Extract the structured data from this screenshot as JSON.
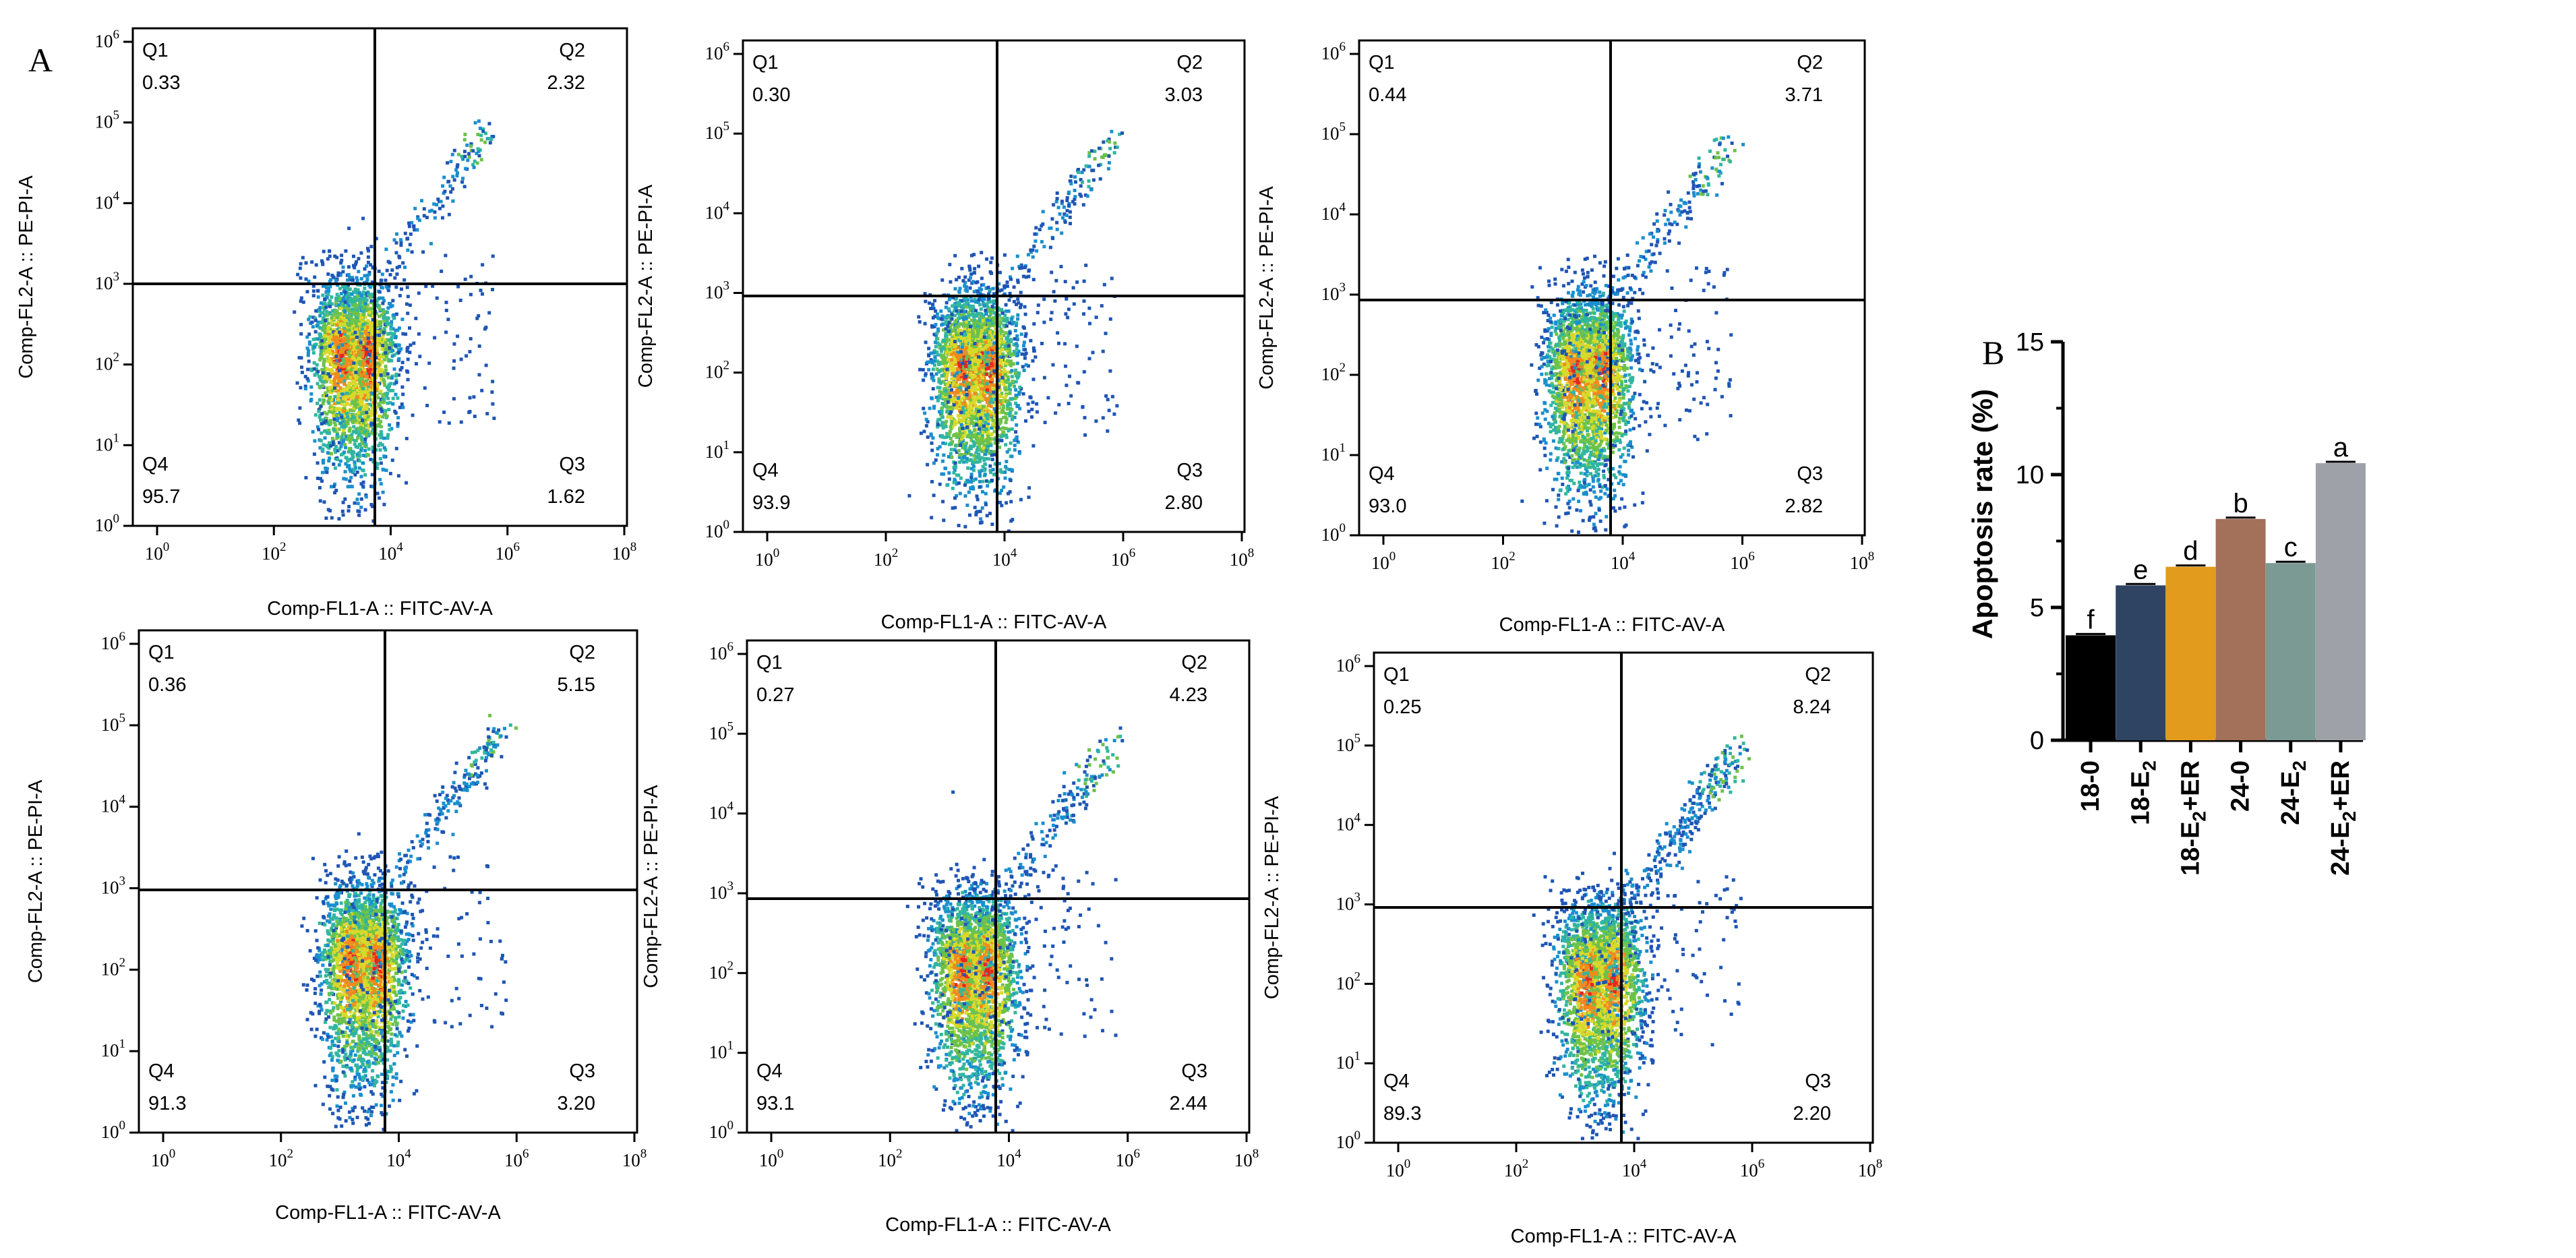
{
  "panel_labels": {
    "a": "A",
    "b": "B"
  },
  "chart_data": [
    {
      "type": "scatter",
      "subtype": "flow-cytometry-density",
      "xlabel": "Comp-FL1-A :: FITC-AV-A",
      "ylabel": "Comp-FL2-A :: PE-PI-A",
      "xticks": [
        "0",
        "2",
        "4",
        "6",
        "8"
      ],
      "yticks": [
        "0",
        "1",
        "2",
        "3",
        "4",
        "5",
        "6"
      ],
      "tick_base": "10",
      "quadrants": [
        {
          "name": "Q1",
          "value": "0.33"
        },
        {
          "name": "Q2",
          "value": "2.32"
        },
        {
          "name": "Q3",
          "value": "1.62"
        },
        {
          "name": "Q4",
          "value": "95.7"
        }
      ]
    },
    {
      "type": "scatter",
      "subtype": "flow-cytometry-density",
      "xlabel": "Comp-FL1-A :: FITC-AV-A",
      "ylabel": "Comp-FL2-A :: PE-PI-A",
      "xticks": [
        "0",
        "2",
        "4",
        "6",
        "8"
      ],
      "yticks": [
        "0",
        "1",
        "2",
        "3",
        "4",
        "5",
        "6"
      ],
      "tick_base": "10",
      "quadrants": [
        {
          "name": "Q1",
          "value": "0.30"
        },
        {
          "name": "Q2",
          "value": "3.03"
        },
        {
          "name": "Q3",
          "value": "2.80"
        },
        {
          "name": "Q4",
          "value": "93.9"
        }
      ]
    },
    {
      "type": "scatter",
      "subtype": "flow-cytometry-density",
      "xlabel": "Comp-FL1-A :: FITC-AV-A",
      "ylabel": "Comp-FL2-A :: PE-PI-A",
      "xticks": [
        "0",
        "2",
        "4",
        "6",
        "8"
      ],
      "yticks": [
        "0",
        "1",
        "2",
        "3",
        "4",
        "5",
        "6"
      ],
      "tick_base": "10",
      "quadrants": [
        {
          "name": "Q1",
          "value": "0.44"
        },
        {
          "name": "Q2",
          "value": "3.71"
        },
        {
          "name": "Q3",
          "value": "2.82"
        },
        {
          "name": "Q4",
          "value": "93.0"
        }
      ]
    },
    {
      "type": "scatter",
      "subtype": "flow-cytometry-density",
      "xlabel": "Comp-FL1-A :: FITC-AV-A",
      "ylabel": "Comp-FL2-A :: PE-PI-A",
      "xticks": [
        "0",
        "2",
        "4",
        "6",
        "8"
      ],
      "yticks": [
        "0",
        "1",
        "2",
        "3",
        "4",
        "5",
        "6"
      ],
      "tick_base": "10",
      "quadrants": [
        {
          "name": "Q1",
          "value": "0.36"
        },
        {
          "name": "Q2",
          "value": "5.15"
        },
        {
          "name": "Q3",
          "value": "3.20"
        },
        {
          "name": "Q4",
          "value": "91.3"
        }
      ]
    },
    {
      "type": "scatter",
      "subtype": "flow-cytometry-density",
      "xlabel": "Comp-FL1-A :: FITC-AV-A",
      "ylabel": "Comp-FL2-A :: PE-PI-A",
      "xticks": [
        "0",
        "2",
        "4",
        "6",
        "8"
      ],
      "yticks": [
        "0",
        "1",
        "2",
        "3",
        "4",
        "5",
        "6"
      ],
      "tick_base": "10",
      "quadrants": [
        {
          "name": "Q1",
          "value": "0.27"
        },
        {
          "name": "Q2",
          "value": "4.23"
        },
        {
          "name": "Q3",
          "value": "2.44"
        },
        {
          "name": "Q4",
          "value": "93.1"
        }
      ]
    },
    {
      "type": "scatter",
      "subtype": "flow-cytometry-density",
      "xlabel": "Comp-FL1-A :: FITC-AV-A",
      "ylabel": "Comp-FL2-A :: PE-PI-A",
      "xticks": [
        "0",
        "2",
        "4",
        "6",
        "8"
      ],
      "yticks": [
        "0",
        "1",
        "2",
        "3",
        "4",
        "5",
        "6"
      ],
      "tick_base": "10",
      "quadrants": [
        {
          "name": "Q1",
          "value": "0.25"
        },
        {
          "name": "Q2",
          "value": "8.24"
        },
        {
          "name": "Q3",
          "value": "2.20"
        },
        {
          "name": "Q4",
          "value": "89.3"
        }
      ]
    },
    {
      "type": "bar",
      "ylabel": "Apoptosis rate (%)",
      "ylim": [
        0,
        15
      ],
      "yticks": [
        "0",
        "5",
        "10",
        "15"
      ],
      "categories": [
        {
          "base": "18-0",
          "sub": "",
          "tail": ""
        },
        {
          "base": "18-E",
          "sub": "2",
          "tail": ""
        },
        {
          "base": "18-E",
          "sub": "2",
          "tail": "+ER"
        },
        {
          "base": "24-0",
          "sub": "",
          "tail": ""
        },
        {
          "base": "24-E",
          "sub": "2",
          "tail": ""
        },
        {
          "base": "24-E",
          "sub": "2",
          "tail": "+ER"
        }
      ],
      "values": [
        3.95,
        5.83,
        6.53,
        8.33,
        6.67,
        10.43
      ],
      "significance": [
        "f",
        "e",
        "d",
        "b",
        "c",
        "a"
      ],
      "colors": [
        "#000000",
        "#2f4462",
        "#e39b1d",
        "#a3705a",
        "#7c9a94",
        "#9ea1a8"
      ]
    }
  ]
}
